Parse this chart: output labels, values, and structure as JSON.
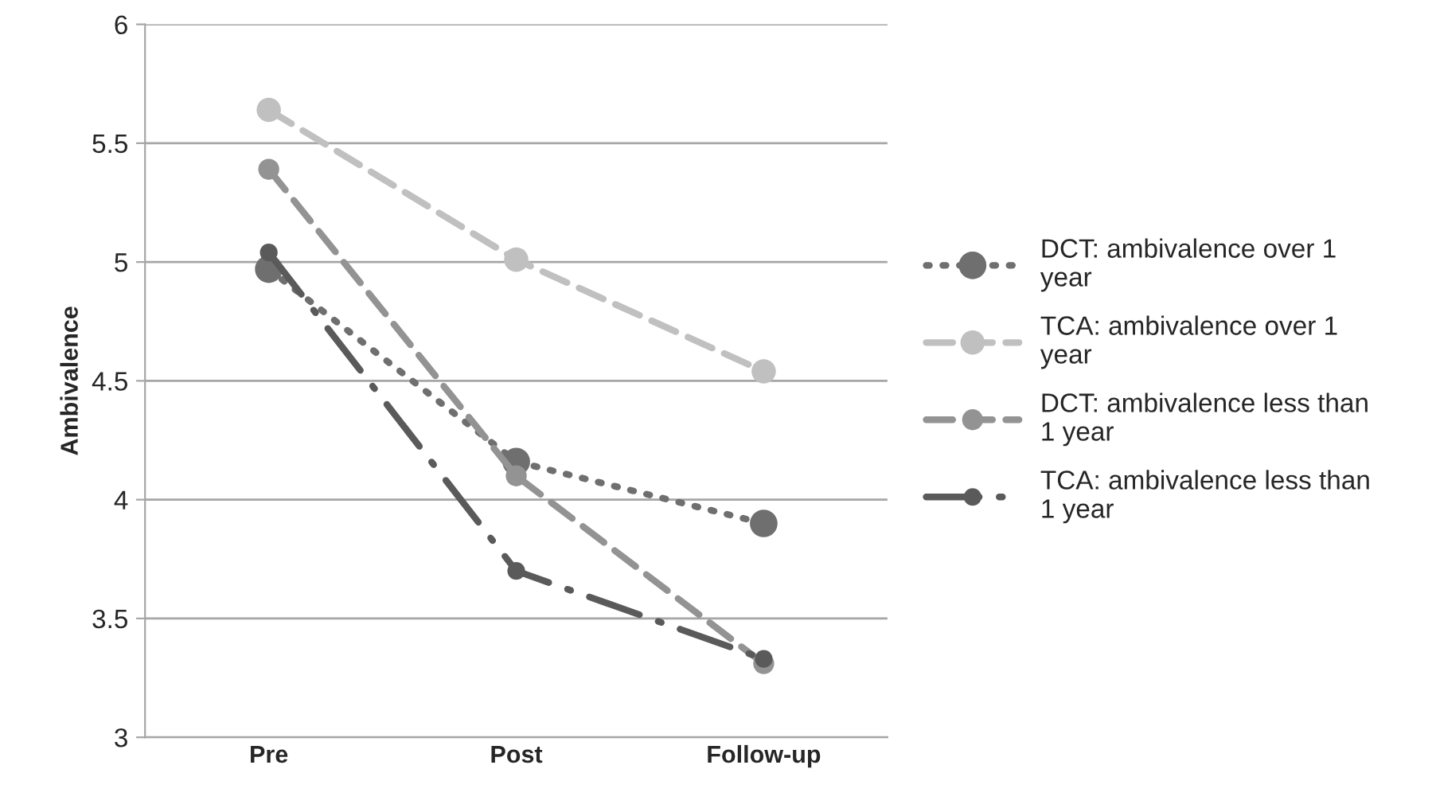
{
  "chart_data": {
    "type": "line",
    "ylabel": "Ambivalence",
    "categories": [
      "Pre",
      "Post",
      "Follow-up"
    ],
    "series": [
      {
        "name": "DCT: ambivalence over 1 year",
        "color": "#6f6f6f",
        "line_style": "dotted",
        "values": [
          4.97,
          4.16,
          3.9
        ]
      },
      {
        "name": "TCA: ambivalence over 1 year",
        "color": "#c0c0c0",
        "line_style": "dashed",
        "values": [
          5.64,
          5.01,
          4.54
        ]
      },
      {
        "name": "DCT: ambivalence less than 1 year",
        "color": "#939393",
        "line_style": "dashed",
        "values": [
          5.39,
          4.1,
          3.31
        ]
      },
      {
        "name": "TCA: ambivalence less than 1 year",
        "color": "#5a5a5a",
        "line_style": "dashdot",
        "values": [
          5.04,
          3.7,
          3.33
        ]
      }
    ],
    "ylim": [
      3,
      6
    ],
    "yticks": [
      3,
      3.5,
      4,
      4.5,
      5,
      5.5,
      6
    ],
    "grid": "y",
    "legend": "right",
    "marker": "circle"
  }
}
